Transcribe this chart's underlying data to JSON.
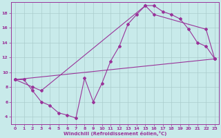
{
  "title": "Windchill (Refroidissement éolien,°C)",
  "background_color": "#c8eaea",
  "line_color": "#993399",
  "grid_color": "#aacccc",
  "xlim": [
    -0.5,
    23.5
  ],
  "ylim": [
    3,
    19.5
  ],
  "xticks": [
    0,
    1,
    2,
    3,
    4,
    5,
    6,
    7,
    8,
    9,
    10,
    11,
    12,
    13,
    14,
    15,
    16,
    17,
    18,
    19,
    20,
    21,
    22,
    23
  ],
  "yticks": [
    4,
    6,
    8,
    10,
    12,
    14,
    16,
    18
  ],
  "curve1_x": [
    0,
    1,
    2,
    3,
    4,
    5,
    6,
    7,
    8,
    9,
    10,
    11,
    12,
    13,
    14,
    15,
    16,
    17,
    18,
    19,
    20,
    21,
    22,
    23
  ],
  "curve1_y": [
    9,
    9,
    7.5,
    6.0,
    5.5,
    4.5,
    4.2,
    3.8,
    9.2,
    6.0,
    8.5,
    11.5,
    13.5,
    16.5,
    17.8,
    19.0,
    19.0,
    18.2,
    17.8,
    17.2,
    15.8,
    14.0,
    13.5,
    11.8
  ],
  "curve2_x": [
    0,
    2,
    3,
    15,
    16,
    22,
    23
  ],
  "curve2_y": [
    9,
    8.0,
    7.5,
    19.0,
    17.8,
    15.8,
    11.8
  ],
  "curve3_x": [
    0,
    23
  ],
  "curve3_y": [
    9.0,
    11.8
  ]
}
